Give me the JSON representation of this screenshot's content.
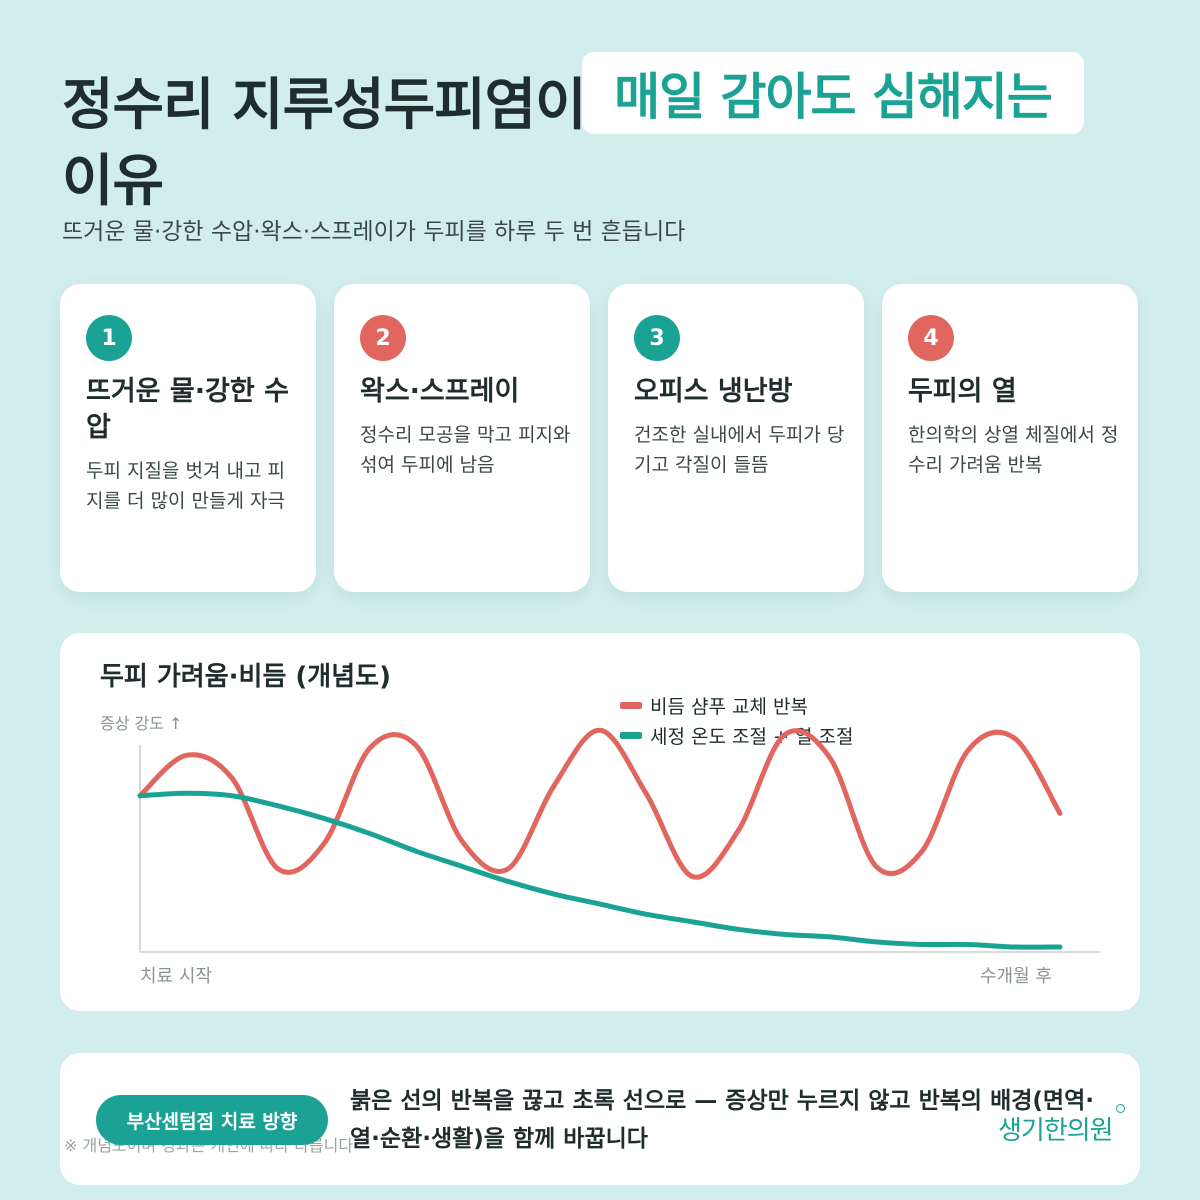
{
  "title": {
    "line1": "정수리 지루성두피염이",
    "highlight": "매일 감아도 심해지는",
    "line2": "이유"
  },
  "subtitle": "뜨거운 물·강한 수압·왁스·스프레이가 두피를 하루 두 번 흔듭니다",
  "cards": [
    {
      "number": "1",
      "title": "뜨거운 물·강한 수압",
      "desc": "두피 지질을 벗겨 내고 피지를 더 많이 만들게 자극",
      "color": "#1aa394"
    },
    {
      "number": "2",
      "title": "왁스·스프레이",
      "desc": "정수리 모공을 막고 피지와 섞여 두피에 남음",
      "color": "#e0665f"
    },
    {
      "number": "3",
      "title": "오피스 냉난방",
      "desc": "건조한 실내에서 두피가 당기고 각질이 들뜸",
      "color": "#1aa394"
    },
    {
      "number": "4",
      "title": "두피의 열",
      "desc": "한의학의 상열 체질에서 정수리 가려움 반복",
      "color": "#e0665f"
    }
  ],
  "chart_data": {
    "type": "line",
    "title": "두피 가려움·비듬 (개념도)",
    "ylabel": "증상 강도 ↑",
    "x_start_label": "치료 시작",
    "x_end_label": "수개월 후",
    "x": [
      0,
      0.05,
      0.1,
      0.15,
      0.2,
      0.25,
      0.3,
      0.35,
      0.4,
      0.45,
      0.5,
      0.55,
      0.6,
      0.65,
      0.7,
      0.75,
      0.8,
      0.85,
      0.9,
      0.95,
      1.0
    ],
    "series": [
      {
        "name": "비듬 샴푸 교체 반복",
        "color": "#e0665f",
        "values": [
          0.62,
          0.78,
          0.69,
          0.33,
          0.43,
          0.81,
          0.82,
          0.44,
          0.33,
          0.66,
          0.88,
          0.63,
          0.3,
          0.48,
          0.86,
          0.77,
          0.34,
          0.4,
          0.8,
          0.85,
          0.55
        ]
      },
      {
        "name": "세정 온도 조절 + 열 조절",
        "color": "#1aa394",
        "values": [
          0.62,
          0.63,
          0.62,
          0.58,
          0.53,
          0.47,
          0.4,
          0.34,
          0.28,
          0.23,
          0.19,
          0.15,
          0.12,
          0.09,
          0.07,
          0.06,
          0.04,
          0.03,
          0.03,
          0.02,
          0.02
        ]
      }
    ],
    "ylim": [
      0,
      1
    ],
    "grid": false,
    "legend": "top-right"
  },
  "bottom": {
    "badge": "부산센텀점 치료 방향",
    "text": "붉은 선의 반복을 끊고 초록 선으로 — 증상만 누르지 않고 반복의 배경(면역·열·순환·생활)을 함께 바꿉니다",
    "footnote": "※ 개념도이며 경과는 개인에 따라 다릅니다",
    "logo": "생기한의원"
  }
}
